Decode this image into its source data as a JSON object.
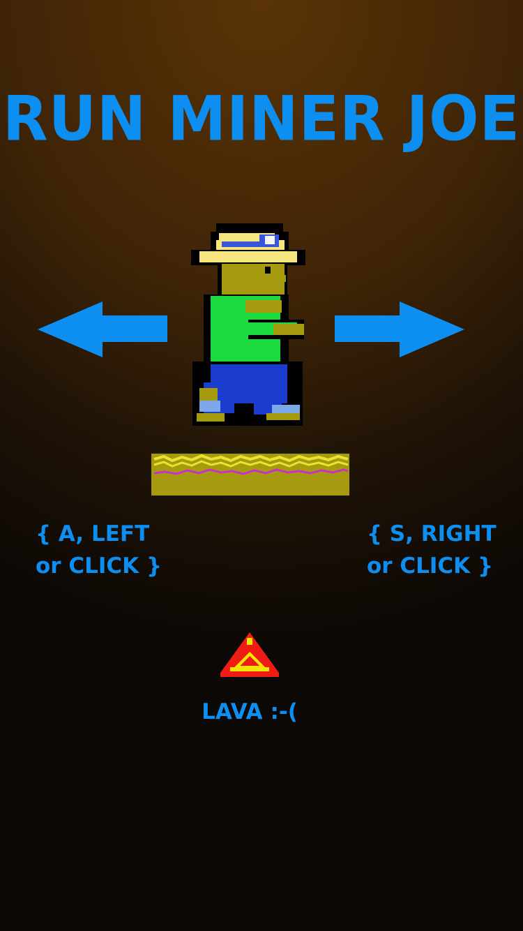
{
  "title": "RUN MINER JOE",
  "controls": {
    "left": {
      "line1": "{ A, LEFT",
      "line2": "or CLICK }"
    },
    "right": {
      "line1": "{ S, RIGHT",
      "line2": "or CLICK }"
    }
  },
  "hazard": {
    "label": "LAVA :-("
  },
  "icons": {
    "left_arrow": "arrow-left-icon",
    "right_arrow": "arrow-right-icon",
    "player": "miner-sprite",
    "platform": "dirt-platform-tile",
    "lava": "lava-icon"
  },
  "colors": {
    "accent": "#0d8ff2",
    "background_top": "#5a3406",
    "background_bottom": "#0c0805",
    "platform": "#a69a0e",
    "lava_red": "#ee1c12",
    "lava_yellow": "#f4e400"
  }
}
